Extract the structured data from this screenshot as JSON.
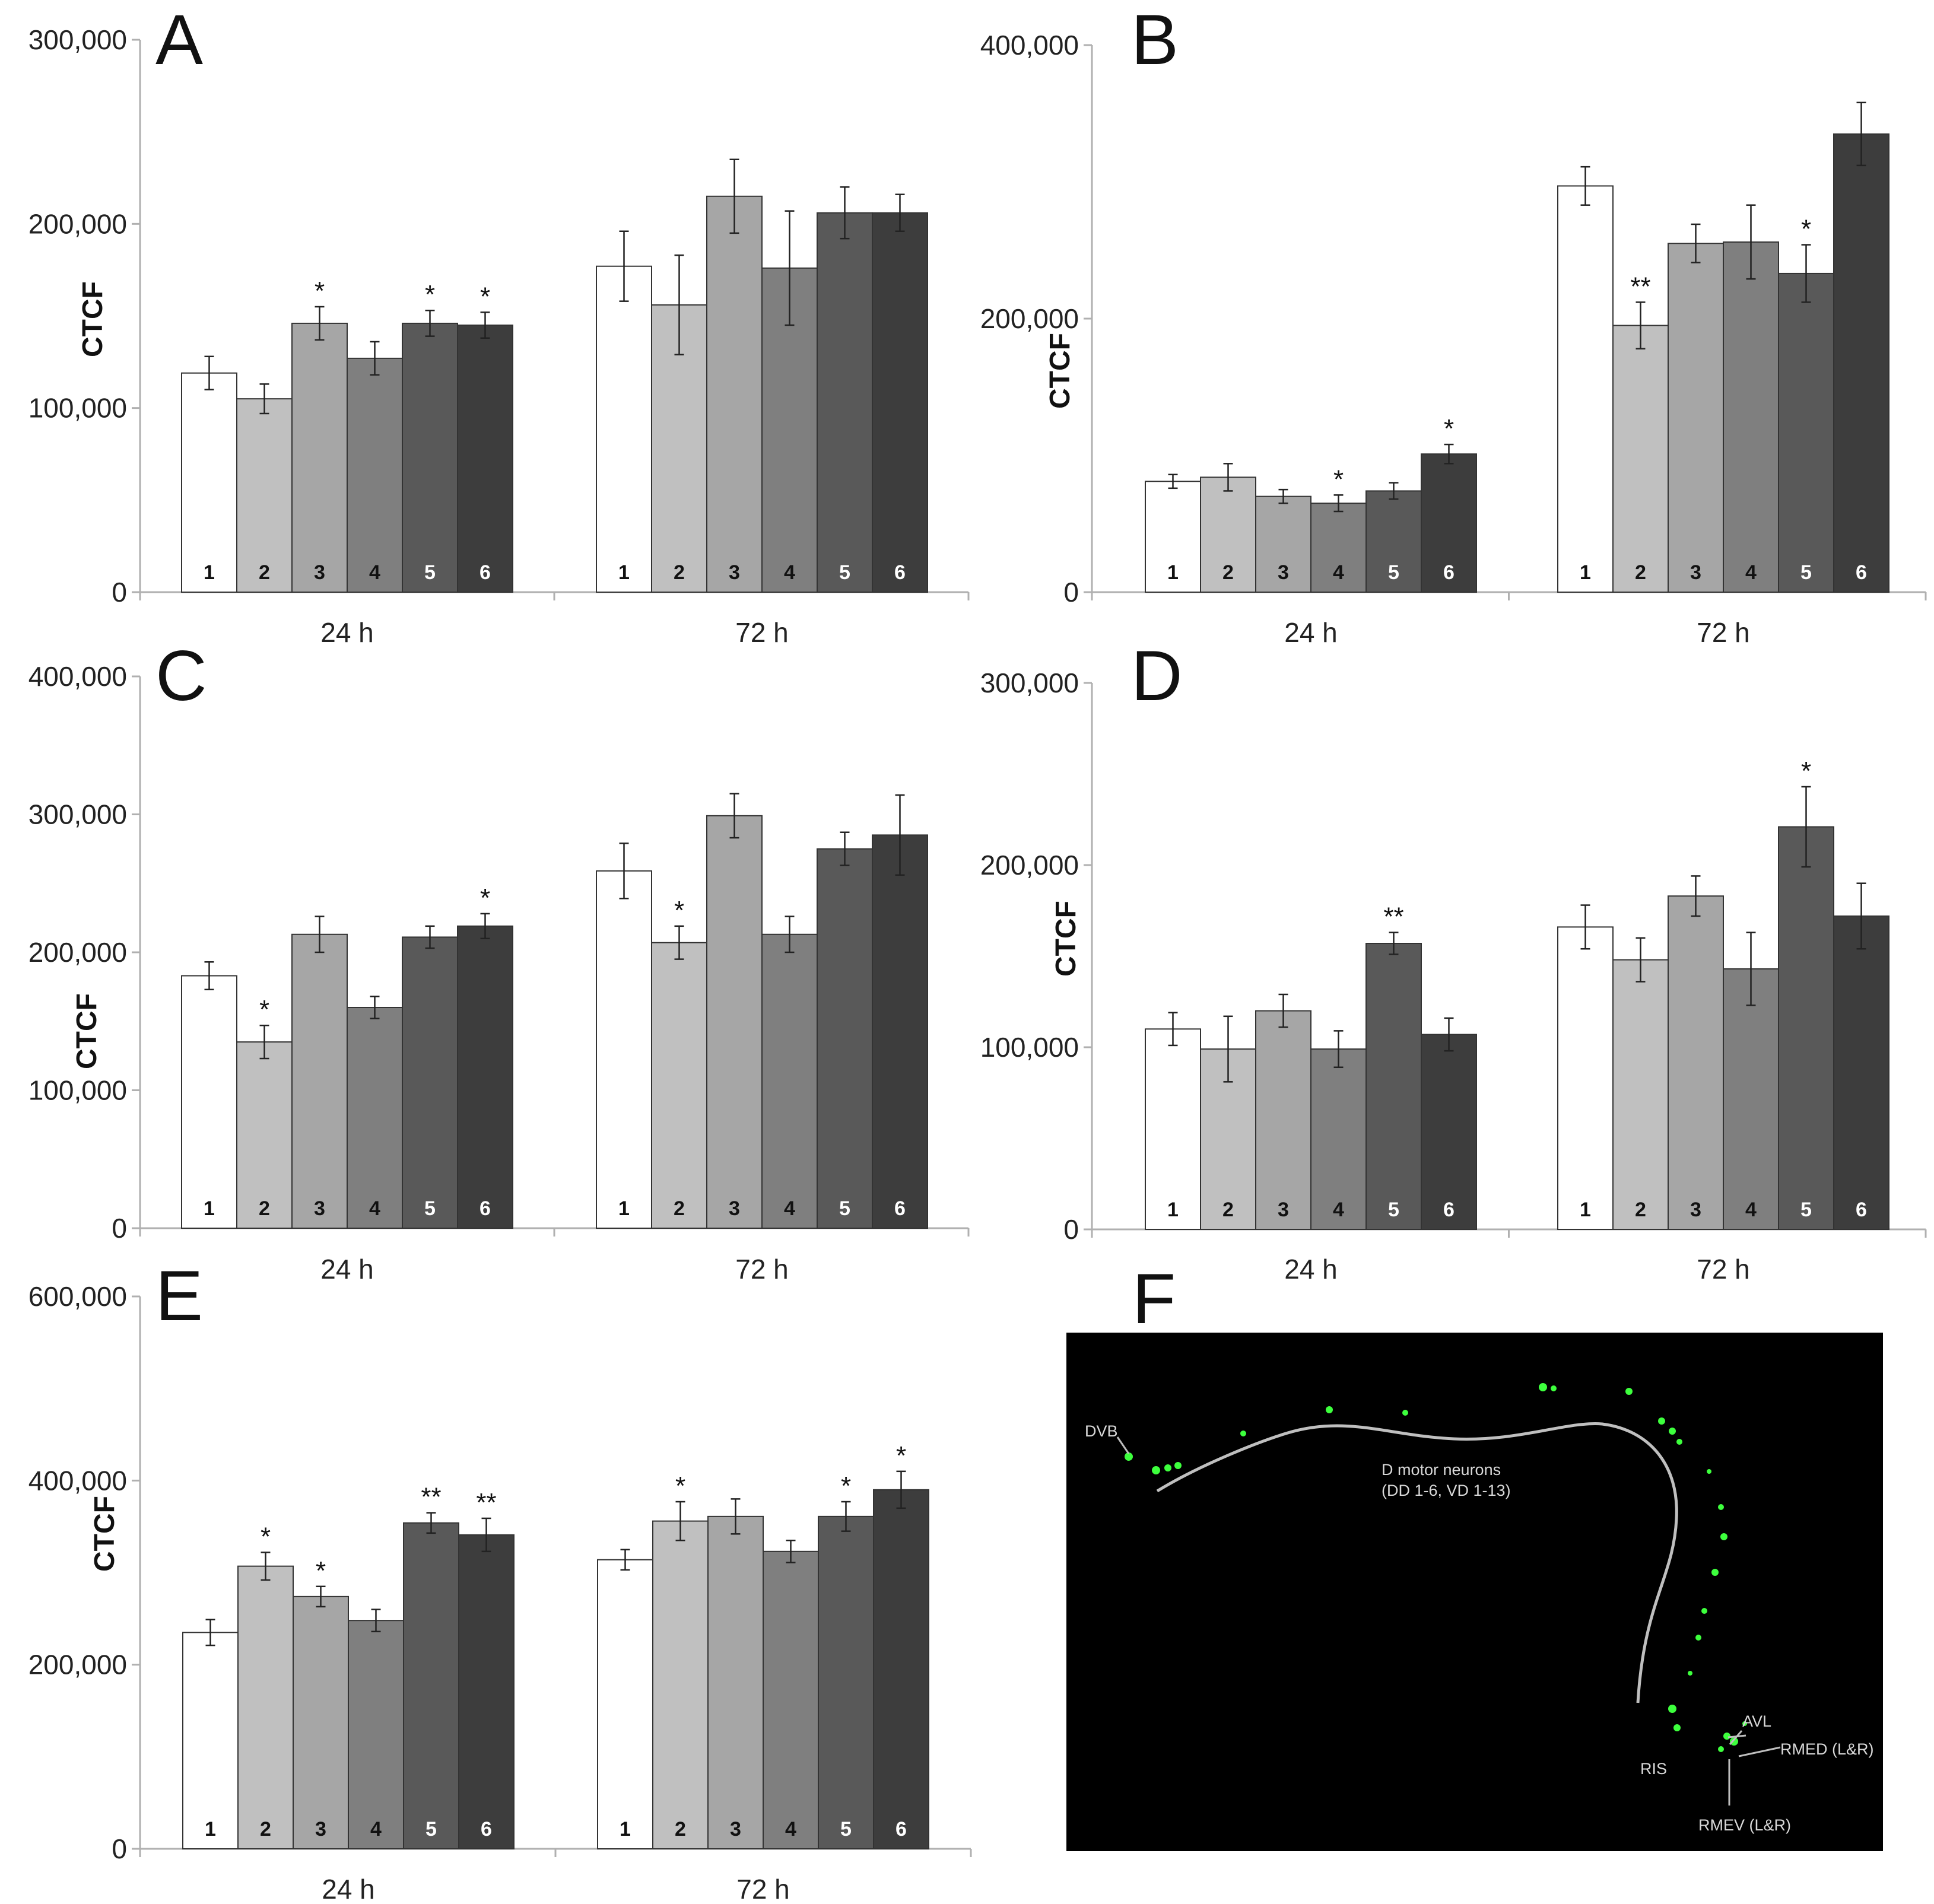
{
  "colors": {
    "bars": [
      "#ffffff",
      "#c0c0c0",
      "#a6a6a6",
      "#7f7f7f",
      "#595959",
      "#3d3d3d"
    ],
    "bar_outline": "#333333",
    "axis": "#b0b0b0",
    "micro_bg": "#000000",
    "neuron": "#3dff3d",
    "line": "#bfbfbf"
  },
  "axis_title": "CTCF",
  "chart_data": [
    {
      "panel": "A",
      "type": "bar",
      "groups": [
        "24 h",
        "72 h"
      ],
      "bar_labels": [
        "1",
        "2",
        "3",
        "4",
        "5",
        "6"
      ],
      "ylabel": "CTCF",
      "ylim": [
        0,
        300000
      ],
      "yticks": [
        0,
        100000,
        200000,
        300000
      ],
      "ytick_labels": [
        "0",
        "100,000",
        "200,000",
        "300,000"
      ],
      "values": [
        [
          119000,
          105000,
          146000,
          127000,
          146000,
          145000
        ],
        [
          177000,
          156000,
          215000,
          176000,
          206000,
          206000
        ]
      ],
      "errors": [
        [
          9000,
          8000,
          9000,
          9000,
          7000,
          7000
        ],
        [
          19000,
          27000,
          20000,
          31000,
          14000,
          10000
        ]
      ],
      "sig": [
        [
          "",
          "",
          "*",
          "",
          "*",
          "*"
        ],
        [
          "",
          "",
          "",
          "",
          "",
          ""
        ]
      ]
    },
    {
      "panel": "B",
      "type": "bar",
      "groups": [
        "24 h",
        "72 h"
      ],
      "bar_labels": [
        "1",
        "2",
        "3",
        "4",
        "5",
        "6"
      ],
      "ylabel": "CTCF",
      "ylim": [
        0,
        400000
      ],
      "yticks": [
        0,
        200000,
        400000
      ],
      "ytick_labels": [
        "0",
        "200,000",
        "400,000"
      ],
      "values": [
        [
          81000,
          84000,
          70000,
          65000,
          74000,
          101000
        ],
        [
          297000,
          195000,
          255000,
          256000,
          233000,
          335000
        ]
      ],
      "errors": [
        [
          5000,
          10000,
          5000,
          6000,
          6000,
          7000
        ],
        [
          14000,
          17000,
          14000,
          27000,
          21000,
          23000
        ]
      ],
      "sig": [
        [
          "",
          "",
          "",
          "*",
          "",
          "*"
        ],
        [
          "",
          "**",
          "",
          "",
          "*",
          ""
        ]
      ]
    },
    {
      "panel": "C",
      "type": "bar",
      "groups": [
        "24 h",
        "72 h"
      ],
      "bar_labels": [
        "1",
        "2",
        "3",
        "4",
        "5",
        "6"
      ],
      "ylabel": "CTCF",
      "ylim": [
        0,
        400000
      ],
      "yticks": [
        0,
        100000,
        200000,
        300000,
        400000
      ],
      "ytick_labels": [
        "0",
        "100,000",
        "200,000",
        "300,000",
        "400,000"
      ],
      "values": [
        [
          183000,
          135000,
          213000,
          160000,
          211000,
          219000
        ],
        [
          259000,
          207000,
          299000,
          213000,
          275000,
          285000
        ]
      ],
      "errors": [
        [
          10000,
          12000,
          13000,
          8000,
          8000,
          9000
        ],
        [
          20000,
          12000,
          16000,
          13000,
          12000,
          29000
        ]
      ],
      "sig": [
        [
          "",
          "*",
          "",
          "",
          "",
          "*"
        ],
        [
          "",
          "*",
          "",
          "",
          "",
          ""
        ]
      ]
    },
    {
      "panel": "D",
      "type": "bar",
      "groups": [
        "24 h",
        "72 h"
      ],
      "bar_labels": [
        "1",
        "2",
        "3",
        "4",
        "5",
        "6"
      ],
      "ylabel": "CTCF",
      "ylim": [
        0,
        300000
      ],
      "yticks": [
        0,
        100000,
        200000,
        300000
      ],
      "ytick_labels": [
        "0",
        "100,000",
        "200,000",
        "300,000"
      ],
      "values": [
        [
          110000,
          99000,
          120000,
          99000,
          157000,
          107000
        ],
        [
          166000,
          148000,
          183000,
          143000,
          221000,
          172000
        ]
      ],
      "errors": [
        [
          9000,
          18000,
          9000,
          10000,
          6000,
          9000
        ],
        [
          12000,
          12000,
          11000,
          20000,
          22000,
          18000
        ]
      ],
      "sig": [
        [
          "",
          "",
          "",
          "",
          "**",
          ""
        ],
        [
          "",
          "",
          "",
          "",
          "*",
          ""
        ]
      ]
    },
    {
      "panel": "E",
      "type": "bar",
      "groups": [
        "24 h",
        "72 h"
      ],
      "bar_labels": [
        "1",
        "2",
        "3",
        "4",
        "5",
        "6"
      ],
      "ylabel": "CTCF",
      "ylim": [
        0,
        600000
      ],
      "yticks": [
        0,
        200000,
        400000,
        600000
      ],
      "ytick_labels": [
        "0",
        "200,000",
        "400,000",
        "600,000"
      ],
      "values": [
        [
          235000,
          307000,
          274000,
          248000,
          354000,
          341000
        ],
        [
          314000,
          356000,
          361000,
          323000,
          361000,
          390000
        ]
      ],
      "errors": [
        [
          14000,
          15000,
          11000,
          12000,
          11000,
          18000
        ],
        [
          11000,
          21000,
          19000,
          12000,
          16000,
          20000
        ]
      ],
      "sig": [
        [
          "",
          "*",
          "*",
          "",
          "**",
          "**"
        ],
        [
          "",
          "*",
          "",
          "",
          "*",
          "*"
        ]
      ]
    }
  ],
  "micrograph": {
    "panel": "F",
    "labels": {
      "dvb": "DVB",
      "d_motor_1": "D motor neurons",
      "d_motor_2": "(DD 1-6, VD 1-13)",
      "avl": "AVL",
      "rmed": "RMED (L&R)",
      "ris": "RIS",
      "rmev": "RMEV (L&R)"
    }
  }
}
